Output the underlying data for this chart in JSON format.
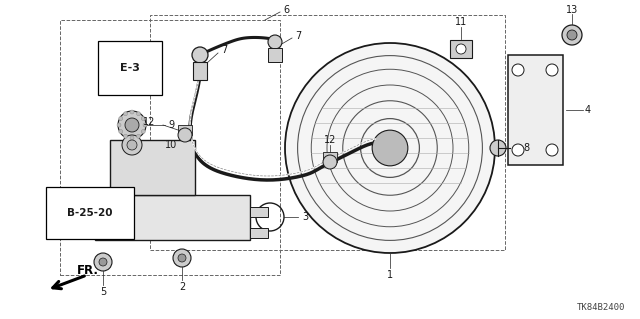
{
  "background_color": "#ffffff",
  "diagram_id": "TK84B2400",
  "line_color": "#1a1a1a",
  "text_color": "#1a1a1a",
  "label_fontsize": 7.0,
  "figsize": [
    6.4,
    3.19
  ],
  "dpi": 100
}
